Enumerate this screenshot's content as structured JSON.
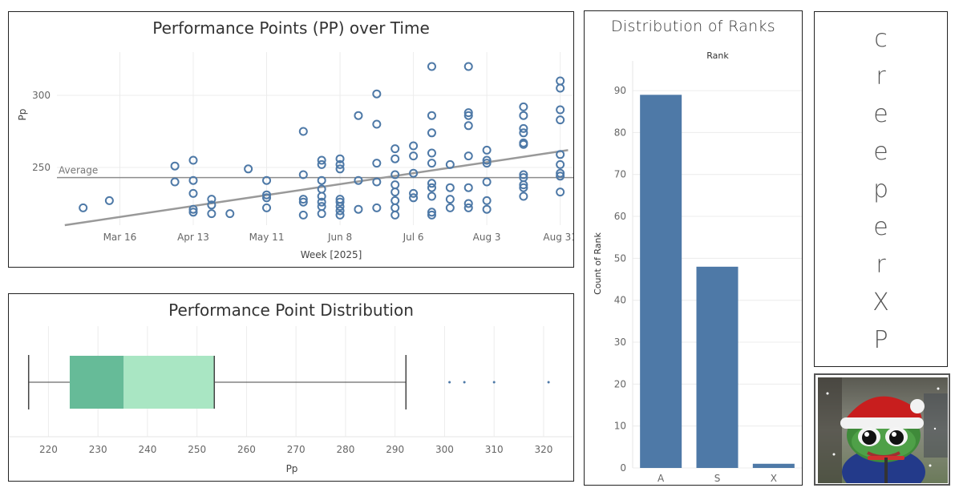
{
  "panels": {
    "scatter": {
      "title": "Performance Points (PP) over Time",
      "average_label": "Average"
    },
    "box": {
      "title": "Performance Point Distribution"
    },
    "bars": {
      "title": "Distribution of Ranks",
      "header": "Rank"
    },
    "name": {
      "letters": [
        "c",
        "r",
        "e",
        "e",
        "p",
        "e",
        "r",
        "X",
        "P"
      ]
    },
    "avatar": {
      "description_icon": "pepe-santa-hat-avatar"
    }
  },
  "colors": {
    "marker": "#4e79a7",
    "bar": "#4e79a7",
    "box_lower": "#66bb98",
    "box_upper": "#a9e6c3",
    "trend": "#999999"
  },
  "chart_data": [
    {
      "type": "scatter",
      "title": "Performance Points (PP) over Time",
      "xlabel": "Week [2025]",
      "ylabel": "Pp",
      "x_ticks": [
        "Mar 16",
        "Apr 13",
        "May 11",
        "Jun 8",
        "Jul 6",
        "Aug 3",
        "Aug 31"
      ],
      "y_ticks": [
        250,
        300
      ],
      "ylim": [
        210,
        330
      ],
      "average": 243,
      "trendline": {
        "from": [
          "2025-02-23",
          210
        ],
        "to": [
          "2025-09-03",
          262
        ]
      },
      "grid": true,
      "points": [
        {
          "x": "2025-03-02",
          "y": 222
        },
        {
          "x": "2025-03-12",
          "y": 227
        },
        {
          "x": "2025-04-06",
          "y": 251
        },
        {
          "x": "2025-04-06",
          "y": 240
        },
        {
          "x": "2025-04-13",
          "y": 255
        },
        {
          "x": "2025-04-13",
          "y": 241
        },
        {
          "x": "2025-04-13",
          "y": 232
        },
        {
          "x": "2025-04-13",
          "y": 221
        },
        {
          "x": "2025-04-13",
          "y": 219
        },
        {
          "x": "2025-04-20",
          "y": 228
        },
        {
          "x": "2025-04-20",
          "y": 224
        },
        {
          "x": "2025-04-20",
          "y": 218
        },
        {
          "x": "2025-04-27",
          "y": 218
        },
        {
          "x": "2025-05-04",
          "y": 249
        },
        {
          "x": "2025-05-11",
          "y": 241
        },
        {
          "x": "2025-05-11",
          "y": 231
        },
        {
          "x": "2025-05-11",
          "y": 229
        },
        {
          "x": "2025-05-11",
          "y": 222
        },
        {
          "x": "2025-05-25",
          "y": 275
        },
        {
          "x": "2025-05-25",
          "y": 245
        },
        {
          "x": "2025-05-25",
          "y": 228
        },
        {
          "x": "2025-05-25",
          "y": 226
        },
        {
          "x": "2025-05-25",
          "y": 217
        },
        {
          "x": "2025-06-01",
          "y": 255
        },
        {
          "x": "2025-06-01",
          "y": 252
        },
        {
          "x": "2025-06-01",
          "y": 241
        },
        {
          "x": "2025-06-01",
          "y": 235
        },
        {
          "x": "2025-06-01",
          "y": 230
        },
        {
          "x": "2025-06-01",
          "y": 226
        },
        {
          "x": "2025-06-01",
          "y": 223
        },
        {
          "x": "2025-06-01",
          "y": 218
        },
        {
          "x": "2025-06-08",
          "y": 256
        },
        {
          "x": "2025-06-08",
          "y": 252
        },
        {
          "x": "2025-06-08",
          "y": 249
        },
        {
          "x": "2025-06-08",
          "y": 228
        },
        {
          "x": "2025-06-08",
          "y": 226
        },
        {
          "x": "2025-06-08",
          "y": 223
        },
        {
          "x": "2025-06-08",
          "y": 220
        },
        {
          "x": "2025-06-08",
          "y": 217
        },
        {
          "x": "2025-06-15",
          "y": 286
        },
        {
          "x": "2025-06-15",
          "y": 241
        },
        {
          "x": "2025-06-15",
          "y": 221
        },
        {
          "x": "2025-06-22",
          "y": 301
        },
        {
          "x": "2025-06-22",
          "y": 280
        },
        {
          "x": "2025-06-22",
          "y": 253
        },
        {
          "x": "2025-06-22",
          "y": 240
        },
        {
          "x": "2025-06-22",
          "y": 222
        },
        {
          "x": "2025-06-29",
          "y": 263
        },
        {
          "x": "2025-06-29",
          "y": 256
        },
        {
          "x": "2025-06-29",
          "y": 245
        },
        {
          "x": "2025-06-29",
          "y": 238
        },
        {
          "x": "2025-06-29",
          "y": 233
        },
        {
          "x": "2025-06-29",
          "y": 227
        },
        {
          "x": "2025-06-29",
          "y": 222
        },
        {
          "x": "2025-06-29",
          "y": 217
        },
        {
          "x": "2025-07-06",
          "y": 265
        },
        {
          "x": "2025-07-06",
          "y": 258
        },
        {
          "x": "2025-07-06",
          "y": 246
        },
        {
          "x": "2025-07-06",
          "y": 232
        },
        {
          "x": "2025-07-06",
          "y": 229
        },
        {
          "x": "2025-07-13",
          "y": 320
        },
        {
          "x": "2025-07-13",
          "y": 286
        },
        {
          "x": "2025-07-13",
          "y": 274
        },
        {
          "x": "2025-07-13",
          "y": 260
        },
        {
          "x": "2025-07-13",
          "y": 253
        },
        {
          "x": "2025-07-13",
          "y": 239
        },
        {
          "x": "2025-07-13",
          "y": 236
        },
        {
          "x": "2025-07-13",
          "y": 230
        },
        {
          "x": "2025-07-13",
          "y": 219
        },
        {
          "x": "2025-07-13",
          "y": 217
        },
        {
          "x": "2025-07-20",
          "y": 252
        },
        {
          "x": "2025-07-20",
          "y": 236
        },
        {
          "x": "2025-07-20",
          "y": 228
        },
        {
          "x": "2025-07-20",
          "y": 222
        },
        {
          "x": "2025-07-27",
          "y": 320
        },
        {
          "x": "2025-07-27",
          "y": 288
        },
        {
          "x": "2025-07-27",
          "y": 286
        },
        {
          "x": "2025-07-27",
          "y": 279
        },
        {
          "x": "2025-07-27",
          "y": 258
        },
        {
          "x": "2025-07-27",
          "y": 236
        },
        {
          "x": "2025-07-27",
          "y": 225
        },
        {
          "x": "2025-07-27",
          "y": 222
        },
        {
          "x": "2025-08-03",
          "y": 262
        },
        {
          "x": "2025-08-03",
          "y": 255
        },
        {
          "x": "2025-08-03",
          "y": 253
        },
        {
          "x": "2025-08-03",
          "y": 240
        },
        {
          "x": "2025-08-03",
          "y": 227
        },
        {
          "x": "2025-08-03",
          "y": 221
        },
        {
          "x": "2025-08-17",
          "y": 292
        },
        {
          "x": "2025-08-17",
          "y": 286
        },
        {
          "x": "2025-08-17",
          "y": 277
        },
        {
          "x": "2025-08-17",
          "y": 274
        },
        {
          "x": "2025-08-17",
          "y": 267
        },
        {
          "x": "2025-08-17",
          "y": 266
        },
        {
          "x": "2025-08-17",
          "y": 245
        },
        {
          "x": "2025-08-17",
          "y": 243
        },
        {
          "x": "2025-08-17",
          "y": 238
        },
        {
          "x": "2025-08-17",
          "y": 236
        },
        {
          "x": "2025-08-17",
          "y": 230
        },
        {
          "x": "2025-08-31",
          "y": 310
        },
        {
          "x": "2025-08-31",
          "y": 305
        },
        {
          "x": "2025-08-31",
          "y": 290
        },
        {
          "x": "2025-08-31",
          "y": 283
        },
        {
          "x": "2025-08-31",
          "y": 259
        },
        {
          "x": "2025-08-31",
          "y": 252
        },
        {
          "x": "2025-08-31",
          "y": 246
        },
        {
          "x": "2025-08-31",
          "y": 244
        },
        {
          "x": "2025-08-31",
          "y": 233
        }
      ]
    },
    {
      "type": "box",
      "title": "Performance Point Distribution",
      "xlabel": "Pp",
      "x_ticks": [
        220,
        230,
        240,
        250,
        260,
        270,
        280,
        290,
        300,
        310,
        320
      ],
      "xlim": [
        212,
        326
      ],
      "whisker_low": 216,
      "q1": 224.3,
      "median": 235.2,
      "q3": 253.5,
      "whisker_high": 292.2,
      "outliers": [
        301,
        304,
        310,
        321
      ]
    },
    {
      "type": "bar",
      "title": "Distribution of Ranks",
      "xlabel": "Rank",
      "ylabel": "Count of Rank",
      "categories": [
        "A",
        "S",
        "X"
      ],
      "values": [
        89,
        48,
        1
      ],
      "y_ticks": [
        0,
        10,
        20,
        30,
        40,
        50,
        60,
        70,
        80,
        90
      ],
      "ylim": [
        0,
        100
      ]
    }
  ]
}
